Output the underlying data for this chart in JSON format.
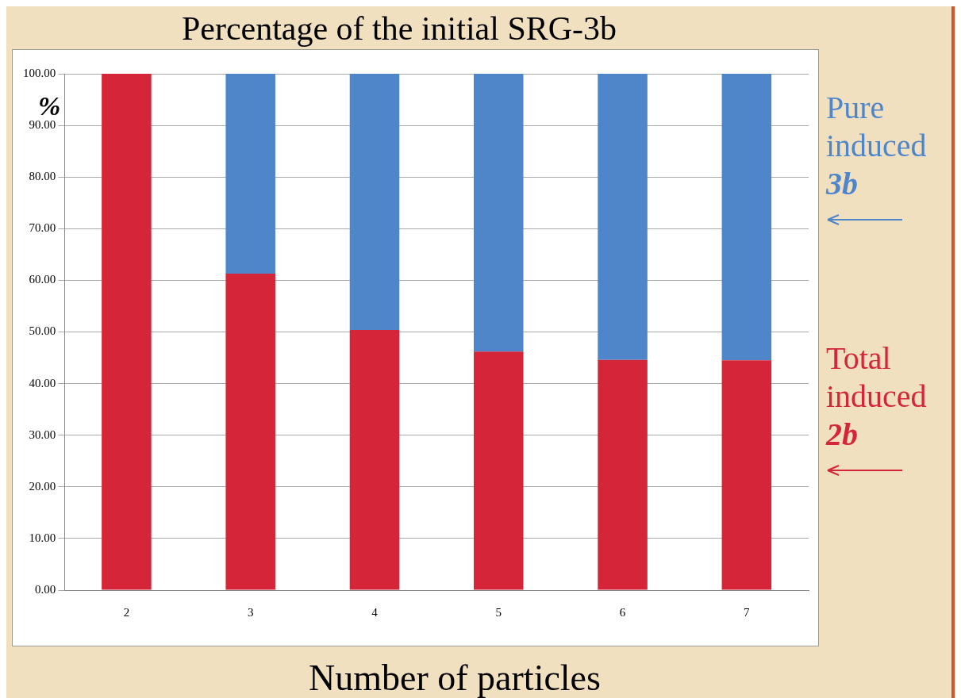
{
  "chart_data": {
    "type": "bar",
    "title": "Percentage of the initial SRG-3b",
    "xlabel": "Number of particles",
    "ylabel": "%",
    "categories": [
      "2",
      "3",
      "4",
      "5",
      "6",
      "7"
    ],
    "stacked": true,
    "series": [
      {
        "name": "Total induced 2b",
        "color": "#d42638",
        "values": [
          100,
          61.3,
          50.4,
          46.2,
          44.6,
          44.5
        ]
      },
      {
        "name": "Pure induced 3b",
        "color": "#4f86c9",
        "values": [
          0,
          38.7,
          49.6,
          53.8,
          55.4,
          55.5
        ]
      }
    ],
    "ylim": [
      0,
      100
    ],
    "yticks": [
      {
        "value": 0,
        "label": "0.00"
      },
      {
        "value": 10,
        "label": "10.00"
      },
      {
        "value": 20,
        "label": "20.00"
      },
      {
        "value": 30,
        "label": "30.00"
      },
      {
        "value": 40,
        "label": "40.00"
      },
      {
        "value": 50,
        "label": "50.00"
      },
      {
        "value": 60,
        "label": "60.00"
      },
      {
        "value": 70,
        "label": "70.00"
      },
      {
        "value": 80,
        "label": "80.00"
      },
      {
        "value": 90,
        "label": "90.00"
      },
      {
        "value": 100,
        "label": "100.00"
      }
    ],
    "grid": "y",
    "legend": "right"
  }
}
